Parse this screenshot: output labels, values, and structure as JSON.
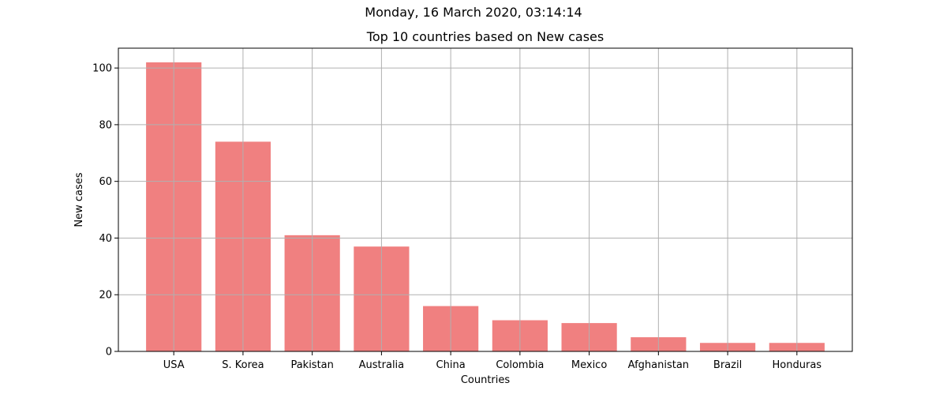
{
  "figure": {
    "suptitle": "Monday, 16 March 2020, 03:14:14"
  },
  "chart_data": {
    "type": "bar",
    "title": "Top 10 countries based on New cases",
    "xlabel": "Countries",
    "ylabel": "New cases",
    "categories": [
      "USA",
      "S. Korea",
      "Pakistan",
      "Australia",
      "China",
      "Colombia",
      "Mexico",
      "Afghanistan",
      "Brazil",
      "Honduras"
    ],
    "values": [
      102,
      74,
      41,
      37,
      16,
      11,
      10,
      5,
      3,
      3
    ],
    "ylim": [
      0,
      107
    ],
    "yticks": [
      0,
      20,
      40,
      60,
      80,
      100
    ],
    "grid": true,
    "bar_color": "#f08080",
    "grid_color": "#b0b0b0"
  }
}
